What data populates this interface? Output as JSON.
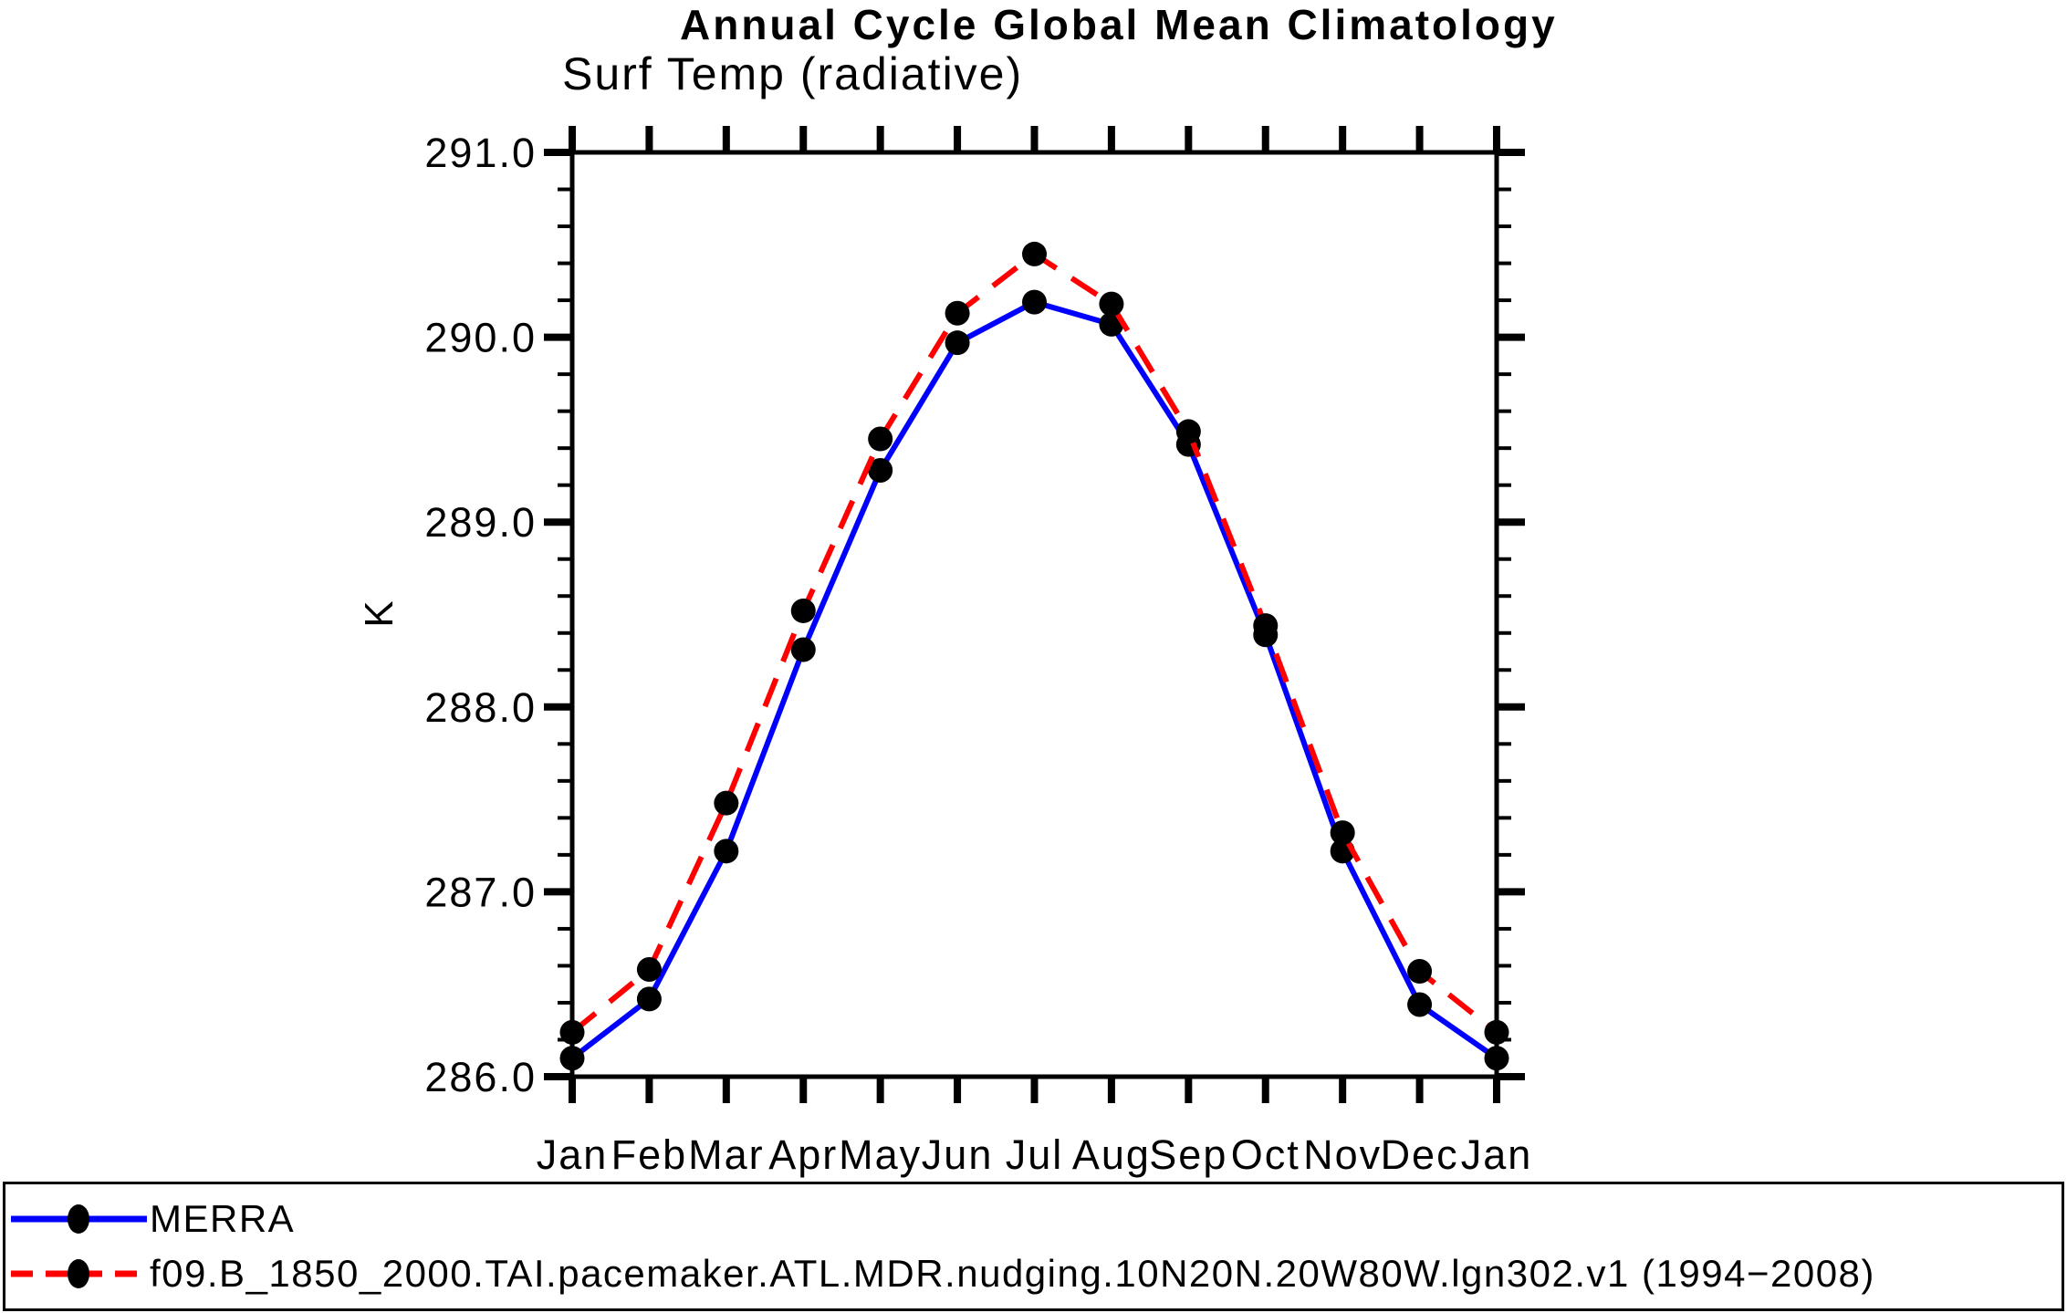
{
  "title": "Annual Cycle Global Mean Climatology",
  "subtitle": "Surf Temp (radiative)",
  "y_axis": {
    "unit_label": "K",
    "tick_labels": [
      "286.0",
      "287.0",
      "288.0",
      "289.0",
      "290.0",
      "291.0"
    ]
  },
  "x_axis": {
    "tick_labels": [
      "Jan",
      "Feb",
      "Mar",
      "Apr",
      "May",
      "Jun",
      "Jul",
      "Aug",
      "Sep",
      "Oct",
      "Nov",
      "Dec",
      "Jan"
    ]
  },
  "colors": {
    "merra_line": "#0000ff",
    "model_line": "#ff0000",
    "marker": "#000000",
    "axis": "#000000"
  },
  "chart_data": {
    "type": "line",
    "title": "Annual Cycle Global Mean Climatology",
    "subtitle": "Surf Temp (radiative)",
    "xlabel": "",
    "ylabel": "K",
    "ylim": [
      286.0,
      291.0
    ],
    "y_major_step": 1.0,
    "y_minor_step": 0.2,
    "y_ticks": [
      "286.0",
      "287.0",
      "288.0",
      "289.0",
      "290.0",
      "291.0"
    ],
    "categories": [
      "Jan",
      "Feb",
      "Mar",
      "Apr",
      "May",
      "Jun",
      "Jul",
      "Aug",
      "Sep",
      "Oct",
      "Nov",
      "Dec",
      "Jan"
    ],
    "grid": false,
    "legend_position": "bottom",
    "series": [
      {
        "name": "MERRA",
        "color": "#0000ff",
        "line_style": "solid",
        "marker": "filled-circle",
        "marker_color": "#000000",
        "values": [
          286.1,
          286.42,
          287.22,
          288.31,
          289.28,
          289.97,
          290.19,
          290.07,
          289.42,
          288.39,
          287.22,
          286.39,
          286.1
        ]
      },
      {
        "name": "f09.B_1850_2000.TAI.pacemaker.ATL.MDR.nudging.10N20N.20W80W.lgn302.v1 (1994−2008)",
        "color": "#ff0000",
        "line_style": "dashed",
        "marker": "filled-circle",
        "marker_color": "#000000",
        "values": [
          286.24,
          286.58,
          287.48,
          288.52,
          289.45,
          290.13,
          290.45,
          290.18,
          289.49,
          288.44,
          287.32,
          286.57,
          286.24
        ]
      }
    ]
  }
}
